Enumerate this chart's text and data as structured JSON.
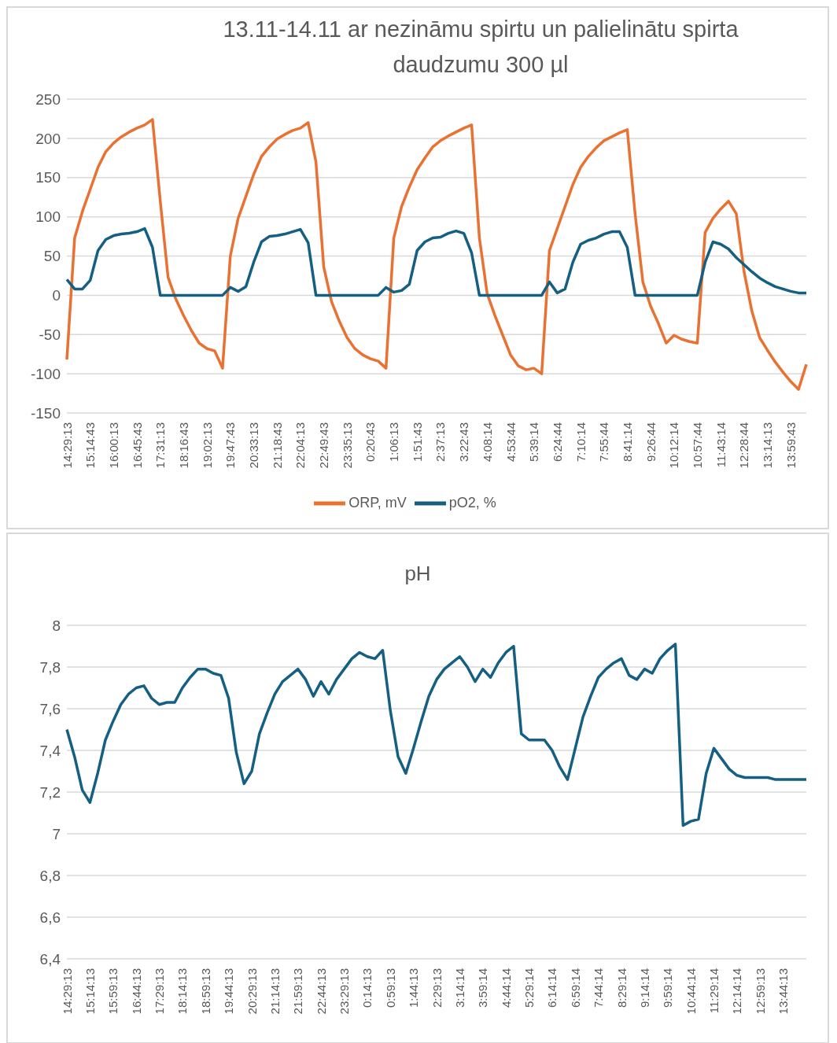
{
  "chart_data": [
    {
      "type": "line",
      "title": "13.11-14.11 ar nezināmu spirtu un palielinātu spirta daudzumu 300 µl",
      "categories": [
        "14:29:13",
        null,
        null,
        "15:14:43",
        null,
        null,
        "16:00:13",
        null,
        null,
        "16:45:43",
        null,
        null,
        "17:31:13",
        null,
        null,
        "18:16:43",
        null,
        null,
        "19:02:13",
        null,
        null,
        "19:47:43",
        null,
        null,
        "20:33:13",
        null,
        null,
        "21:18:43",
        null,
        null,
        "22:04:13",
        null,
        null,
        "22:49:43",
        null,
        null,
        "23:35:13",
        null,
        null,
        "0:20:43",
        null,
        null,
        "1:06:13",
        null,
        null,
        "1:51:43",
        null,
        null,
        "2:37:13",
        null,
        null,
        "3:22:43",
        null,
        null,
        "4:08:14",
        null,
        null,
        "4:53:44",
        null,
        null,
        "5:39:14",
        null,
        null,
        "6:24:44",
        null,
        null,
        "7:10:14",
        null,
        null,
        "7:55:44",
        null,
        null,
        "8:41:14",
        null,
        null,
        "9:26:44",
        null,
        null,
        "10:12:14",
        null,
        null,
        "10:57:44",
        null,
        null,
        "11:43:14",
        null,
        null,
        "12:28:44",
        null,
        null,
        "13:14:13",
        null,
        null,
        "13:59:43",
        null,
        null
      ],
      "series": [
        {
          "name": "ORP, mV",
          "color": "#e97132",
          "values": [
            -82,
            73,
            107,
            135,
            163,
            183,
            194,
            202,
            208,
            213,
            217,
            224,
            120,
            23,
            -5,
            -26,
            -45,
            -61,
            -68,
            -71,
            -93,
            50,
            98,
            126,
            154,
            177,
            189,
            199,
            205,
            210,
            213,
            220,
            170,
            36,
            -8,
            -33,
            -54,
            -68,
            -76,
            -81,
            -84,
            -93,
            73,
            113,
            138,
            160,
            175,
            189,
            197,
            203,
            208,
            213,
            217,
            73,
            2,
            -26,
            -51,
            -76,
            -90,
            -95,
            -93,
            -100,
            57,
            85,
            113,
            141,
            163,
            177,
            188,
            197,
            202,
            207,
            211,
            104,
            17,
            -14,
            -36,
            -61,
            -51,
            -56,
            -59,
            -61,
            80,
            98,
            110,
            120,
            104,
            30,
            -20,
            -54,
            -70,
            -85,
            -98,
            -110,
            -120,
            -88
          ]
        },
        {
          "name": "pO2, %",
          "color": "#156082",
          "values": [
            20,
            8,
            8,
            19,
            57,
            71,
            76,
            78,
            79,
            81,
            85,
            61,
            0,
            0,
            0,
            0,
            0,
            0,
            0,
            0,
            0,
            10,
            5,
            11,
            42,
            68,
            75,
            76,
            78,
            81,
            84,
            67,
            0,
            0,
            0,
            0,
            0,
            0,
            0,
            0,
            0,
            10,
            4,
            6,
            14,
            57,
            68,
            73,
            74,
            79,
            82,
            79,
            54,
            0,
            0,
            0,
            0,
            0,
            0,
            0,
            0,
            0,
            17,
            3,
            8,
            42,
            65,
            70,
            73,
            78,
            81,
            81,
            61,
            0,
            0,
            0,
            0,
            0,
            0,
            0,
            0,
            0,
            42,
            68,
            65,
            59,
            48,
            39,
            30,
            22,
            16,
            11,
            8,
            5,
            3,
            3
          ]
        }
      ],
      "ylim": [
        -150,
        250
      ],
      "yticks": [
        -150,
        -100,
        -50,
        0,
        50,
        100,
        150,
        200,
        250
      ],
      "grid": "y",
      "legend": "bottom"
    },
    {
      "type": "line",
      "title": "pH",
      "categories": [
        "14:29:13",
        null,
        null,
        "15:14:13",
        null,
        null,
        "15:59:13",
        null,
        null,
        "16:44:13",
        null,
        null,
        "17:29:13",
        null,
        null,
        "18:14:13",
        null,
        null,
        "18:59:13",
        null,
        null,
        "19:44:13",
        null,
        null,
        "20:29:13",
        null,
        null,
        "21:14:13",
        null,
        null,
        "21:59:13",
        null,
        null,
        "22:44:13",
        null,
        null,
        "23:29:13",
        null,
        null,
        "0:14:13",
        null,
        null,
        "0:59:13",
        null,
        null,
        "1:44:13",
        null,
        null,
        "2:29:13",
        null,
        null,
        "3:14:14",
        null,
        null,
        "3:59:14",
        null,
        null,
        "4:44:14",
        null,
        null,
        "5:29:14",
        null,
        null,
        "6:14:14",
        null,
        null,
        "6:59:14",
        null,
        null,
        "7:44:14",
        null,
        null,
        "8:29:14",
        null,
        null,
        "9:14:14",
        null,
        null,
        "9:59:14",
        null,
        null,
        "10:44:14",
        null,
        null,
        "11:29:14",
        null,
        null,
        "12:14:14",
        null,
        null,
        "12:59:13",
        null,
        null,
        "13:44:13",
        null,
        null,
        null
      ],
      "series": [
        {
          "color": "#156082",
          "values": [
            7.5,
            7.37,
            7.21,
            7.15,
            7.29,
            7.45,
            7.54,
            7.62,
            7.67,
            7.7,
            7.71,
            7.65,
            7.62,
            7.63,
            7.63,
            7.7,
            7.75,
            7.79,
            7.79,
            7.77,
            7.76,
            7.65,
            7.39,
            7.24,
            7.3,
            7.48,
            7.58,
            7.67,
            7.73,
            7.76,
            7.79,
            7.74,
            7.66,
            7.73,
            7.67,
            7.74,
            7.79,
            7.84,
            7.87,
            7.85,
            7.84,
            7.88,
            7.59,
            7.37,
            7.29,
            7.41,
            7.54,
            7.66,
            7.74,
            7.79,
            7.82,
            7.85,
            7.8,
            7.73,
            7.79,
            7.75,
            7.82,
            7.87,
            7.9,
            7.48,
            7.45,
            7.45,
            7.45,
            7.4,
            7.32,
            7.26,
            7.41,
            7.56,
            7.66,
            7.75,
            7.79,
            7.82,
            7.84,
            7.76,
            7.74,
            7.79,
            7.77,
            7.84,
            7.88,
            7.91,
            7.04,
            7.06,
            7.07,
            7.29,
            7.41,
            7.36,
            7.31,
            7.28,
            7.27,
            7.27,
            7.27,
            7.27,
            7.26,
            7.26,
            7.26,
            7.26,
            7.26
          ]
        }
      ],
      "ylim": [
        6.4,
        8
      ],
      "yticks": [
        {
          "value": 6.4,
          "label": "6,4"
        },
        {
          "value": 6.6,
          "label": "6,6"
        },
        {
          "value": 6.8,
          "label": "6,8"
        },
        7,
        {
          "value": 7.2,
          "label": "7,2"
        },
        {
          "value": 7.4,
          "label": "7,4"
        },
        {
          "value": 7.6,
          "label": "7,6"
        },
        {
          "value": 7.8,
          "label": "7,8"
        },
        8
      ],
      "grid": "y"
    }
  ]
}
